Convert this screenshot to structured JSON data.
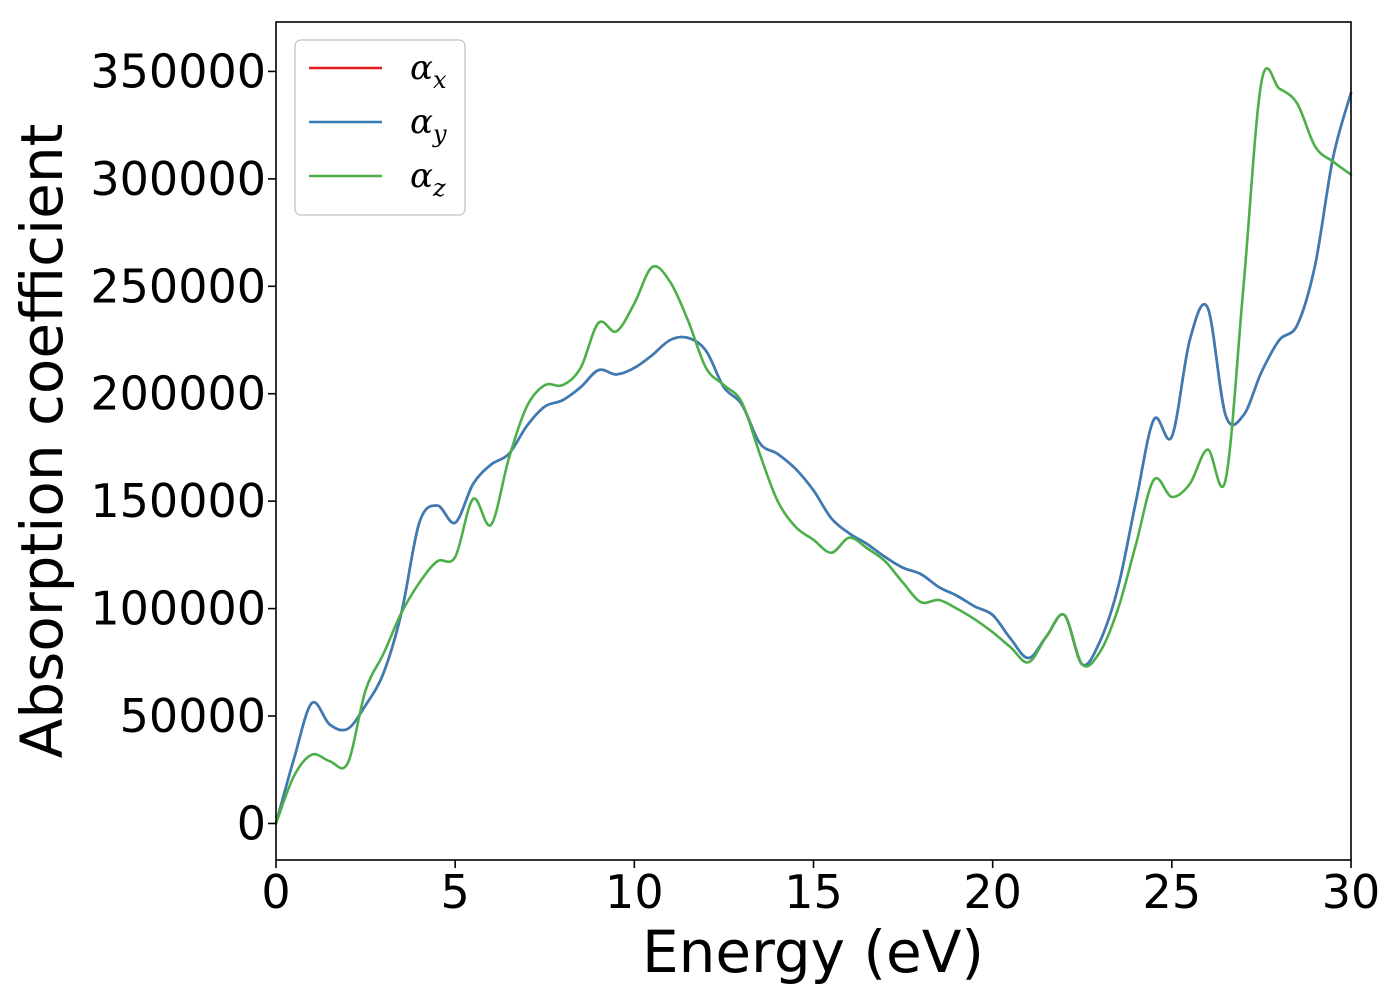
{
  "chart_data": {
    "type": "line",
    "title": "",
    "xlabel": "Energy (eV)",
    "ylabel": "Absorption coefficient",
    "xlim": [
      0,
      30
    ],
    "ylim": [
      -17000,
      373000
    ],
    "xticks": [
      0,
      5,
      10,
      15,
      20,
      25,
      30
    ],
    "xtick_labels": [
      "0",
      "5",
      "10",
      "15",
      "20",
      "25",
      "30"
    ],
    "yticks": [
      0,
      50000,
      100000,
      150000,
      200000,
      250000,
      300000,
      350000
    ],
    "ytick_labels": [
      "0",
      "50000",
      "100000",
      "150000",
      "200000",
      "250000",
      "300000",
      "350000"
    ],
    "grid": false,
    "legend_position": "top-left",
    "x": [
      0,
      0.5,
      1.0,
      1.5,
      2.0,
      2.5,
      3.0,
      3.5,
      4.0,
      4.5,
      5.0,
      5.5,
      6.0,
      6.5,
      7.0,
      7.5,
      8.0,
      8.5,
      9.0,
      9.5,
      10.0,
      10.5,
      11.0,
      11.5,
      12.0,
      12.5,
      13.0,
      13.5,
      14.0,
      14.5,
      15.0,
      15.5,
      16.0,
      16.5,
      17.0,
      17.5,
      18.0,
      18.5,
      19.0,
      19.5,
      20.0,
      20.5,
      21.0,
      21.5,
      22.0,
      22.5,
      23.0,
      23.5,
      24.0,
      24.5,
      25.0,
      25.5,
      26.0,
      26.5,
      27.0,
      27.5,
      28.0,
      28.5,
      29.0,
      29.5,
      30.0
    ],
    "series": [
      {
        "name": "α",
        "sub": "x",
        "color": "#e41a1c",
        "values": [
          0,
          30000,
          56000,
          46000,
          44000,
          55000,
          70000,
          98000,
          140000,
          148000,
          140000,
          158000,
          167000,
          172000,
          185000,
          194000,
          197000,
          203000,
          211000,
          209000,
          212000,
          218000,
          225000,
          226000,
          220000,
          203000,
          195000,
          177000,
          172000,
          165000,
          155000,
          142000,
          135000,
          130000,
          124000,
          119000,
          116000,
          110000,
          106000,
          101000,
          97000,
          86000,
          77000,
          87000,
          97000,
          74000,
          85000,
          110000,
          150000,
          188000,
          180000,
          225000,
          240000,
          190000,
          190000,
          210000,
          225000,
          232000,
          260000,
          310000,
          340000
        ]
      },
      {
        "name": "α",
        "sub": "y",
        "color": "#377eb8",
        "values": [
          0,
          30000,
          56000,
          46000,
          44000,
          55000,
          70000,
          98000,
          140000,
          148000,
          140000,
          158000,
          167000,
          172000,
          185000,
          194000,
          197000,
          203000,
          211000,
          209000,
          212000,
          218000,
          225000,
          226000,
          220000,
          203000,
          195000,
          177000,
          172000,
          165000,
          155000,
          142000,
          135000,
          130000,
          124000,
          119000,
          116000,
          110000,
          106000,
          101000,
          97000,
          86000,
          77000,
          87000,
          97000,
          74000,
          85000,
          110000,
          150000,
          188000,
          180000,
          225000,
          240000,
          190000,
          190000,
          210000,
          225000,
          232000,
          260000,
          310000,
          340000
        ]
      },
      {
        "name": "α",
        "sub": "z",
        "color": "#4daf4a",
        "values": [
          0,
          22000,
          32000,
          29000,
          28000,
          62000,
          79000,
          98000,
          112000,
          122000,
          124000,
          151000,
          139000,
          170000,
          194000,
          204000,
          204000,
          212000,
          233000,
          229000,
          242000,
          259000,
          252000,
          234000,
          212000,
          204000,
          196000,
          172000,
          150000,
          138000,
          132000,
          126000,
          133000,
          128000,
          122000,
          112000,
          103000,
          104000,
          100000,
          95000,
          89000,
          82000,
          75000,
          87000,
          97000,
          74000,
          80000,
          100000,
          130000,
          160000,
          152000,
          158000,
          174000,
          160000,
          250000,
          345000,
          342000,
          335000,
          315000,
          308000,
          302000
        ]
      }
    ]
  }
}
